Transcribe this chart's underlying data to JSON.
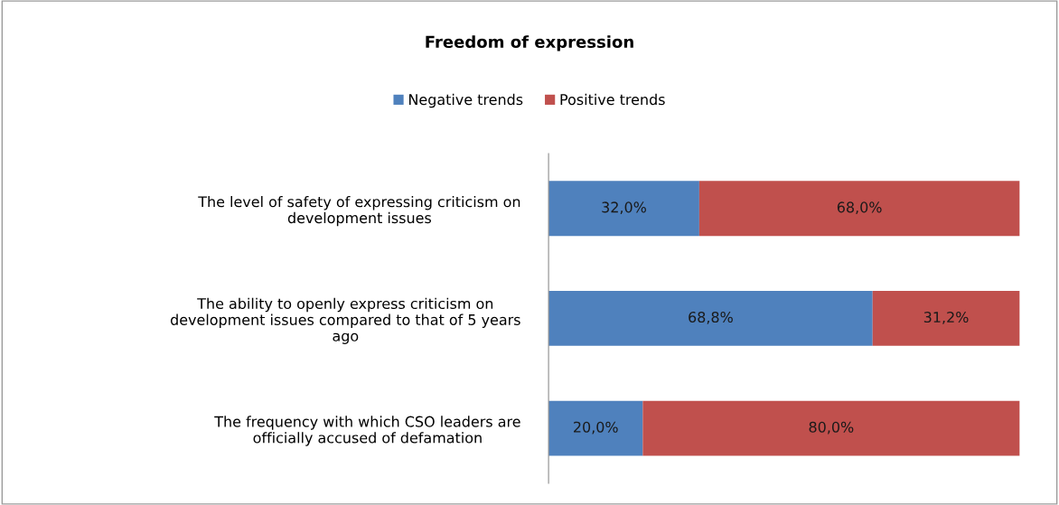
{
  "chart_data": {
    "type": "bar",
    "title": "Freedom of expression",
    "orientation": "horizontal",
    "stacked": true,
    "legend": "top",
    "grid": false,
    "categories": [
      "The level of safety of expressing criticism on development issues",
      "The ability to openly express criticism on development issues compared to that of 5 years ago",
      "The frequency with which CSO leaders are officially accused of defamation"
    ],
    "series": [
      {
        "name": "Negative trends",
        "color": "#4f81bd",
        "values": [
          32.0,
          68.8,
          20.0
        ],
        "value_labels": [
          "32,0%",
          "68,8%",
          "20,0%"
        ]
      },
      {
        "name": "Positive trends",
        "color": "#c0504d",
        "values": [
          68.0,
          31.2,
          80.0
        ],
        "value_labels": [
          "68,0%",
          "31,2%",
          "80,0%"
        ]
      }
    ]
  }
}
